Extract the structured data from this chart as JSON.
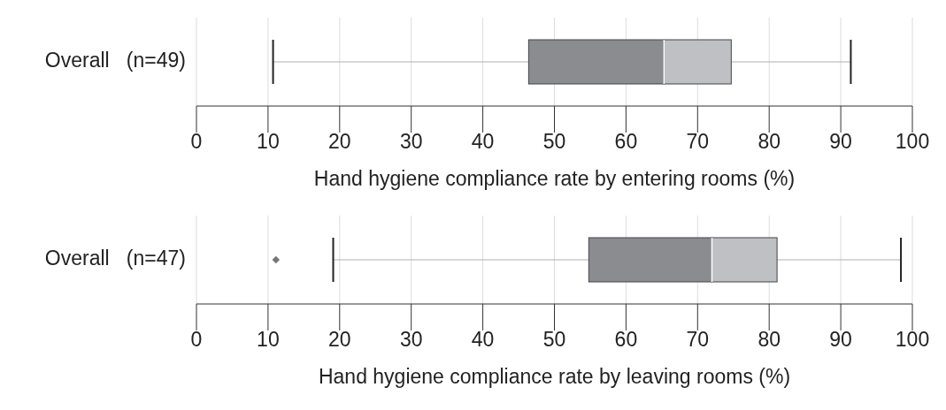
{
  "chart_data": [
    {
      "type": "box",
      "orientation": "horizontal",
      "categories": [
        "Overall   (n=49)"
      ],
      "series": [
        {
          "color": "#8b8c90",
          "boxes": [
            {
              "low": 10.7,
              "q1": 46.4,
              "median": 65.3,
              "q3": 74.7,
              "high": 91.4
            }
          ]
        }
      ],
      "xlim": [
        0,
        100
      ],
      "xticks": [
        0,
        10,
        20,
        30,
        40,
        50,
        60,
        70,
        80,
        90,
        100
      ],
      "xlabel": "Hand hygiene compliance rate by entering rooms (%)",
      "grid": "x"
    },
    {
      "type": "box",
      "orientation": "horizontal",
      "categories": [
        "Overall   (n=47)"
      ],
      "series": [
        {
          "color": "#8b8c90",
          "boxes": [
            {
              "low": 19.1,
              "q1": 54.8,
              "median": 72.0,
              "q3": 81.1,
              "high": 98.4,
              "outliers": [
                11.1
              ]
            }
          ]
        }
      ],
      "xlim": [
        0,
        100
      ],
      "xticks": [
        0,
        10,
        20,
        30,
        40,
        50,
        60,
        70,
        80,
        90,
        100
      ],
      "xlabel": "Hand hygiene compliance rate by leaving rooms (%)",
      "grid": "x"
    }
  ]
}
